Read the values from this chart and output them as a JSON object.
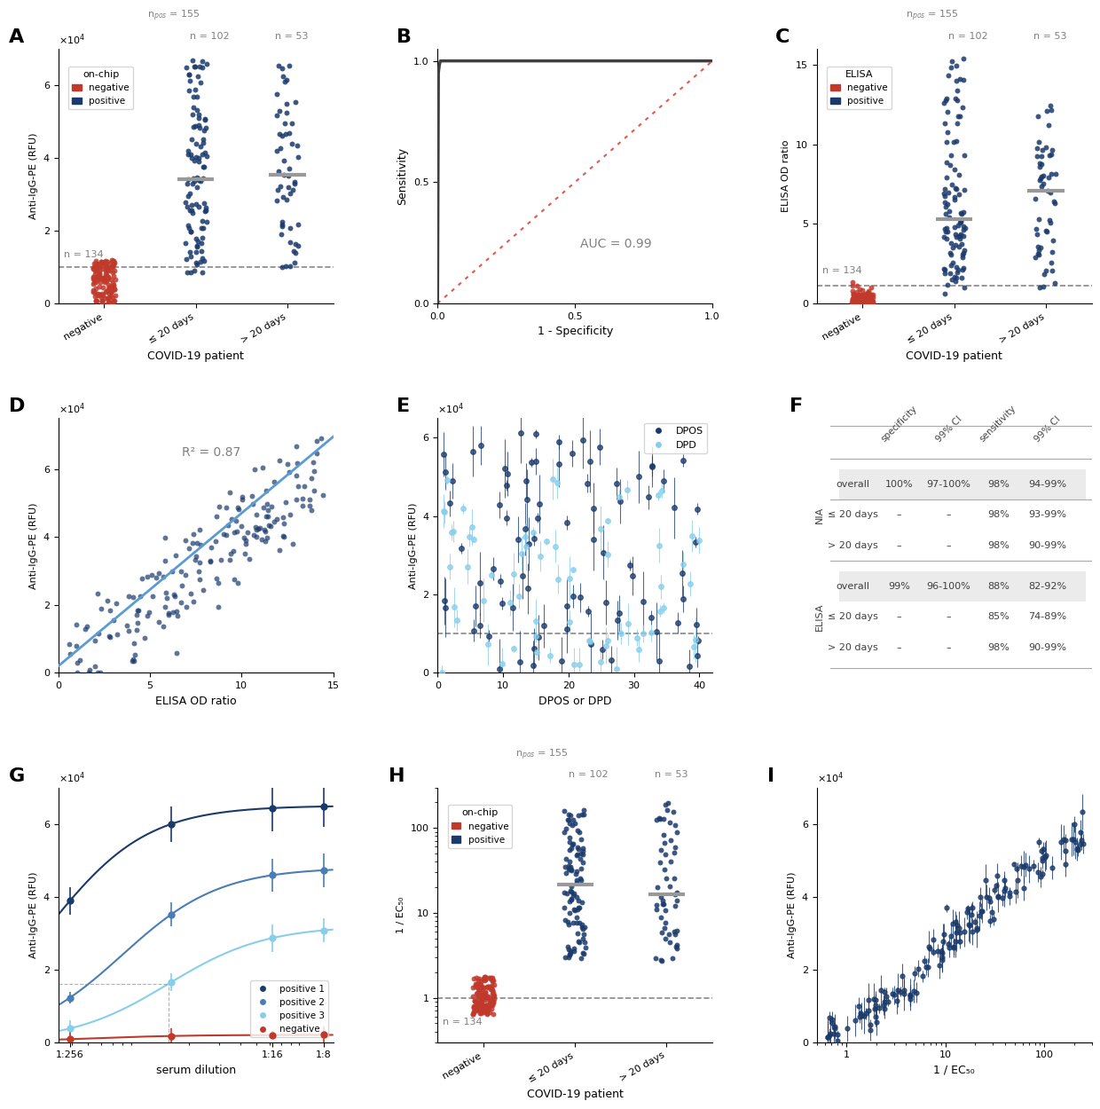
{
  "panel_labels": [
    "A",
    "B",
    "C",
    "D",
    "E",
    "F",
    "G",
    "H",
    "I"
  ],
  "colors": {
    "negative": "#C0392B",
    "positive_dark": "#1A3A6B",
    "positive_light": "#5B9BD5",
    "roc_curve": "#404040",
    "roc_diagonal": "#E05A4E",
    "fit_line": "#5B9BD5",
    "threshold": "#888888",
    "median_bar": "#999999",
    "dpos_dark": "#1A3A6B",
    "dpd_light": "#87CEEB"
  },
  "panel_A": {
    "npos": 155,
    "n_le20": 102,
    "n_gt20": 53,
    "n_neg": 134,
    "ylim": [
      0,
      70000
    ],
    "ylabel": "Anti-IgG-PE (RFU)",
    "xlabel": "COVID-19 patient",
    "xticks": [
      "negative",
      "≤ 20 days",
      "> 20 days"
    ]
  },
  "panel_B": {
    "auc": 0.99,
    "xlabel": "1 - Specificity",
    "ylabel": "Sensitivity"
  },
  "panel_C": {
    "npos": 155,
    "n_le20": 102,
    "n_gt20": 53,
    "n_neg": 134,
    "ylim": [
      0,
      16
    ],
    "ylabel": "ELISA OD ratio",
    "xlabel": "COVID-19 patient",
    "xticks": [
      "negative",
      "≤ 20 days",
      "> 20 days"
    ]
  },
  "panel_D": {
    "r2": 0.87,
    "xlabel": "ELISA OD ratio",
    "ylabel": "Anti-IgG-PE (RFU)",
    "xlim": [
      0,
      15
    ],
    "ylim": [
      0,
      75000
    ]
  },
  "panel_E": {
    "xlabel": "DPOS or DPD",
    "ylabel": "Anti-IgG-PE (RFU)",
    "xlim": [
      0,
      42
    ],
    "ylim": [
      0,
      65000
    ],
    "threshold": 10000
  },
  "panel_F": {
    "rows": [
      "overall",
      "≤ 20 days",
      "> 20 days",
      "overall",
      "≤ 20 days",
      "> 20 days"
    ],
    "col_headers": [
      "specificity",
      "99% CI",
      "sensitivity",
      "99% CI"
    ],
    "row_groups": [
      "NIA",
      "ELISA"
    ],
    "data": [
      [
        "100%",
        "97-100%",
        "98%",
        "94-99%"
      ],
      [
        "–",
        "–",
        "98%",
        "93-99%"
      ],
      [
        "–",
        "–",
        "98%",
        "90-99%"
      ],
      [
        "99%",
        "96-100%",
        "88%",
        "82-92%"
      ],
      [
        "–",
        "–",
        "85%",
        "74-89%"
      ],
      [
        "–",
        "–",
        "98%",
        "90-99%"
      ]
    ]
  },
  "panel_G": {
    "xlabel": "serum dilution",
    "ylabel": "Anti-IgG-PE (RFU)",
    "ylim": [
      0,
      70000
    ],
    "xtick_labels": [
      "1:256",
      "1:16",
      "1:8"
    ],
    "legend_labels": [
      "positive 1",
      "positive 2",
      "positive 3",
      "negative"
    ],
    "legend_colors": [
      "#1A3A6B",
      "#4A7DB5",
      "#87CEEB",
      "#C0392B"
    ]
  },
  "panel_H": {
    "npos": 155,
    "n_le20": 102,
    "n_gt20": 53,
    "n_neg": 134,
    "ylim": [
      0.3,
      300
    ],
    "ylabel": "1 / EC₅₀",
    "xlabel": "COVID-19 patient",
    "xticks": [
      "negative",
      "≤ 20 days",
      "> 20 days"
    ],
    "threshold": 1.0
  },
  "panel_I": {
    "xlabel": "1 / EC₅₀",
    "ylabel": "Anti-IgG-PE (RFU)",
    "ylim": [
      0,
      70000
    ]
  }
}
